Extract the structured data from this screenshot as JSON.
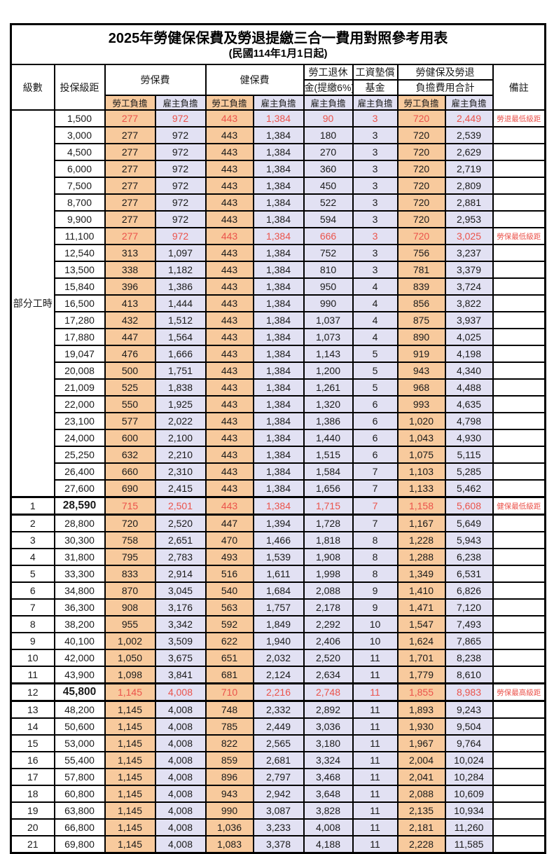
{
  "title": "2025年勞健保保費及勞退提繳三合一費用對照參考用表",
  "subtitle": "(民國114年1月1日起)",
  "colors": {
    "worker_burden_bg": "#F8CA9D",
    "employer_burden_bg": "#E2E1F3",
    "highlight_red": "#EB534B",
    "grid_border": "#000000"
  },
  "header": {
    "level": "級數",
    "bracket": "投保級距",
    "labor_insurance": "勞保費",
    "health_insurance": "健保費",
    "pension_line1": "勞工退休",
    "pension_line2": "金(提繳6%)",
    "wage_fund_line1": "工資墊償",
    "wage_fund_line2": "基金",
    "total_line1": "勞健保及勞退",
    "total_line2": "負擔費用合計",
    "remark": "備註",
    "worker_burden": "勞工負擔",
    "employer_burden": "雇主負擔"
  },
  "part_time_label": "部分工時",
  "rows": [
    {
      "level": "",
      "bracket": "1,500",
      "labor_w": "277",
      "labor_e": "972",
      "health_w": "443",
      "health_e": "1,384",
      "pension": "90",
      "fund": "3",
      "total_w": "720",
      "total_e": "2,449",
      "remark": "勞退最低級距",
      "red": true,
      "bold": false,
      "thick": false
    },
    {
      "level": "",
      "bracket": "3,000",
      "labor_w": "277",
      "labor_e": "972",
      "health_w": "443",
      "health_e": "1,384",
      "pension": "180",
      "fund": "3",
      "total_w": "720",
      "total_e": "2,539",
      "remark": "",
      "red": false,
      "bold": false,
      "thick": false
    },
    {
      "level": "",
      "bracket": "4,500",
      "labor_w": "277",
      "labor_e": "972",
      "health_w": "443",
      "health_e": "1,384",
      "pension": "270",
      "fund": "3",
      "total_w": "720",
      "total_e": "2,629",
      "remark": "",
      "red": false,
      "bold": false,
      "thick": false
    },
    {
      "level": "",
      "bracket": "6,000",
      "labor_w": "277",
      "labor_e": "972",
      "health_w": "443",
      "health_e": "1,384",
      "pension": "360",
      "fund": "3",
      "total_w": "720",
      "total_e": "2,719",
      "remark": "",
      "red": false,
      "bold": false,
      "thick": false
    },
    {
      "level": "",
      "bracket": "7,500",
      "labor_w": "277",
      "labor_e": "972",
      "health_w": "443",
      "health_e": "1,384",
      "pension": "450",
      "fund": "3",
      "total_w": "720",
      "total_e": "2,809",
      "remark": "",
      "red": false,
      "bold": false,
      "thick": false
    },
    {
      "level": "",
      "bracket": "8,700",
      "labor_w": "277",
      "labor_e": "972",
      "health_w": "443",
      "health_e": "1,384",
      "pension": "522",
      "fund": "3",
      "total_w": "720",
      "total_e": "2,881",
      "remark": "",
      "red": false,
      "bold": false,
      "thick": false
    },
    {
      "level": "",
      "bracket": "9,900",
      "labor_w": "277",
      "labor_e": "972",
      "health_w": "443",
      "health_e": "1,384",
      "pension": "594",
      "fund": "3",
      "total_w": "720",
      "total_e": "2,953",
      "remark": "",
      "red": false,
      "bold": false,
      "thick": false
    },
    {
      "level": "",
      "bracket": "11,100",
      "labor_w": "277",
      "labor_e": "972",
      "health_w": "443",
      "health_e": "1,384",
      "pension": "666",
      "fund": "3",
      "total_w": "720",
      "total_e": "3,025",
      "remark": "勞保最低級距",
      "red": true,
      "bold": false,
      "thick": false
    },
    {
      "level": "",
      "bracket": "12,540",
      "labor_w": "313",
      "labor_e": "1,097",
      "health_w": "443",
      "health_e": "1,384",
      "pension": "752",
      "fund": "3",
      "total_w": "756",
      "total_e": "3,237",
      "remark": "",
      "red": false,
      "bold": false,
      "thick": false
    },
    {
      "level": "",
      "bracket": "13,500",
      "labor_w": "338",
      "labor_e": "1,182",
      "health_w": "443",
      "health_e": "1,384",
      "pension": "810",
      "fund": "3",
      "total_w": "781",
      "total_e": "3,379",
      "remark": "",
      "red": false,
      "bold": false,
      "thick": false
    },
    {
      "level": "",
      "bracket": "15,840",
      "labor_w": "396",
      "labor_e": "1,386",
      "health_w": "443",
      "health_e": "1,384",
      "pension": "950",
      "fund": "4",
      "total_w": "839",
      "total_e": "3,724",
      "remark": "",
      "red": false,
      "bold": false,
      "thick": false
    },
    {
      "level": "",
      "bracket": "16,500",
      "labor_w": "413",
      "labor_e": "1,444",
      "health_w": "443",
      "health_e": "1,384",
      "pension": "990",
      "fund": "4",
      "total_w": "856",
      "total_e": "3,822",
      "remark": "",
      "red": false,
      "bold": false,
      "thick": false
    },
    {
      "level": "",
      "bracket": "17,280",
      "labor_w": "432",
      "labor_e": "1,512",
      "health_w": "443",
      "health_e": "1,384",
      "pension": "1,037",
      "fund": "4",
      "total_w": "875",
      "total_e": "3,937",
      "remark": "",
      "red": false,
      "bold": false,
      "thick": false
    },
    {
      "level": "",
      "bracket": "17,880",
      "labor_w": "447",
      "labor_e": "1,564",
      "health_w": "443",
      "health_e": "1,384",
      "pension": "1,073",
      "fund": "4",
      "total_w": "890",
      "total_e": "4,025",
      "remark": "",
      "red": false,
      "bold": false,
      "thick": false
    },
    {
      "level": "",
      "bracket": "19,047",
      "labor_w": "476",
      "labor_e": "1,666",
      "health_w": "443",
      "health_e": "1,384",
      "pension": "1,143",
      "fund": "5",
      "total_w": "919",
      "total_e": "4,198",
      "remark": "",
      "red": false,
      "bold": false,
      "thick": false
    },
    {
      "level": "",
      "bracket": "20,008",
      "labor_w": "500",
      "labor_e": "1,751",
      "health_w": "443",
      "health_e": "1,384",
      "pension": "1,200",
      "fund": "5",
      "total_w": "943",
      "total_e": "4,340",
      "remark": "",
      "red": false,
      "bold": false,
      "thick": false
    },
    {
      "level": "",
      "bracket": "21,009",
      "labor_w": "525",
      "labor_e": "1,838",
      "health_w": "443",
      "health_e": "1,384",
      "pension": "1,261",
      "fund": "5",
      "total_w": "968",
      "total_e": "4,488",
      "remark": "",
      "red": false,
      "bold": false,
      "thick": false
    },
    {
      "level": "",
      "bracket": "22,000",
      "labor_w": "550",
      "labor_e": "1,925",
      "health_w": "443",
      "health_e": "1,384",
      "pension": "1,320",
      "fund": "6",
      "total_w": "993",
      "total_e": "4,635",
      "remark": "",
      "red": false,
      "bold": false,
      "thick": false
    },
    {
      "level": "",
      "bracket": "23,100",
      "labor_w": "577",
      "labor_e": "2,022",
      "health_w": "443",
      "health_e": "1,384",
      "pension": "1,386",
      "fund": "6",
      "total_w": "1,020",
      "total_e": "4,798",
      "remark": "",
      "red": false,
      "bold": false,
      "thick": false
    },
    {
      "level": "",
      "bracket": "24,000",
      "labor_w": "600",
      "labor_e": "2,100",
      "health_w": "443",
      "health_e": "1,384",
      "pension": "1,440",
      "fund": "6",
      "total_w": "1,043",
      "total_e": "4,930",
      "remark": "",
      "red": false,
      "bold": false,
      "thick": false
    },
    {
      "level": "",
      "bracket": "25,250",
      "labor_w": "632",
      "labor_e": "2,210",
      "health_w": "443",
      "health_e": "1,384",
      "pension": "1,515",
      "fund": "6",
      "total_w": "1,075",
      "total_e": "5,115",
      "remark": "",
      "red": false,
      "bold": false,
      "thick": false
    },
    {
      "level": "",
      "bracket": "26,400",
      "labor_w": "660",
      "labor_e": "2,310",
      "health_w": "443",
      "health_e": "1,384",
      "pension": "1,584",
      "fund": "7",
      "total_w": "1,103",
      "total_e": "5,285",
      "remark": "",
      "red": false,
      "bold": false,
      "thick": false
    },
    {
      "level": "",
      "bracket": "27,600",
      "labor_w": "690",
      "labor_e": "2,415",
      "health_w": "443",
      "health_e": "1,384",
      "pension": "1,656",
      "fund": "7",
      "total_w": "1,133",
      "total_e": "5,462",
      "remark": "",
      "red": false,
      "bold": false,
      "thick": false
    },
    {
      "level": "1",
      "bracket": "28,590",
      "labor_w": "715",
      "labor_e": "2,501",
      "health_w": "443",
      "health_e": "1,384",
      "pension": "1,715",
      "fund": "7",
      "total_w": "1,158",
      "total_e": "5,608",
      "remark": "健保最低級距",
      "red": true,
      "bold": true,
      "thick": true
    },
    {
      "level": "2",
      "bracket": "28,800",
      "labor_w": "720",
      "labor_e": "2,520",
      "health_w": "447",
      "health_e": "1,394",
      "pension": "1,728",
      "fund": "7",
      "total_w": "1,167",
      "total_e": "5,649",
      "remark": "",
      "red": false,
      "bold": false,
      "thick": false
    },
    {
      "level": "3",
      "bracket": "30,300",
      "labor_w": "758",
      "labor_e": "2,651",
      "health_w": "470",
      "health_e": "1,466",
      "pension": "1,818",
      "fund": "8",
      "total_w": "1,228",
      "total_e": "5,943",
      "remark": "",
      "red": false,
      "bold": false,
      "thick": false
    },
    {
      "level": "4",
      "bracket": "31,800",
      "labor_w": "795",
      "labor_e": "2,783",
      "health_w": "493",
      "health_e": "1,539",
      "pension": "1,908",
      "fund": "8",
      "total_w": "1,288",
      "total_e": "6,238",
      "remark": "",
      "red": false,
      "bold": false,
      "thick": false
    },
    {
      "level": "5",
      "bracket": "33,300",
      "labor_w": "833",
      "labor_e": "2,914",
      "health_w": "516",
      "health_e": "1,611",
      "pension": "1,998",
      "fund": "8",
      "total_w": "1,349",
      "total_e": "6,531",
      "remark": "",
      "red": false,
      "bold": false,
      "thick": false
    },
    {
      "level": "6",
      "bracket": "34,800",
      "labor_w": "870",
      "labor_e": "3,045",
      "health_w": "540",
      "health_e": "1,684",
      "pension": "2,088",
      "fund": "9",
      "total_w": "1,410",
      "total_e": "6,826",
      "remark": "",
      "red": false,
      "bold": false,
      "thick": false
    },
    {
      "level": "7",
      "bracket": "36,300",
      "labor_w": "908",
      "labor_e": "3,176",
      "health_w": "563",
      "health_e": "1,757",
      "pension": "2,178",
      "fund": "9",
      "total_w": "1,471",
      "total_e": "7,120",
      "remark": "",
      "red": false,
      "bold": false,
      "thick": false
    },
    {
      "level": "8",
      "bracket": "38,200",
      "labor_w": "955",
      "labor_e": "3,342",
      "health_w": "592",
      "health_e": "1,849",
      "pension": "2,292",
      "fund": "10",
      "total_w": "1,547",
      "total_e": "7,493",
      "remark": "",
      "red": false,
      "bold": false,
      "thick": false
    },
    {
      "level": "9",
      "bracket": "40,100",
      "labor_w": "1,002",
      "labor_e": "3,509",
      "health_w": "622",
      "health_e": "1,940",
      "pension": "2,406",
      "fund": "10",
      "total_w": "1,624",
      "total_e": "7,865",
      "remark": "",
      "red": false,
      "bold": false,
      "thick": false
    },
    {
      "level": "10",
      "bracket": "42,000",
      "labor_w": "1,050",
      "labor_e": "3,675",
      "health_w": "651",
      "health_e": "2,032",
      "pension": "2,520",
      "fund": "11",
      "total_w": "1,701",
      "total_e": "8,238",
      "remark": "",
      "red": false,
      "bold": false,
      "thick": false
    },
    {
      "level": "11",
      "bracket": "43,900",
      "labor_w": "1,098",
      "labor_e": "3,841",
      "health_w": "681",
      "health_e": "2,124",
      "pension": "2,634",
      "fund": "11",
      "total_w": "1,779",
      "total_e": "8,610",
      "remark": "",
      "red": false,
      "bold": false,
      "thick": false
    },
    {
      "level": "12",
      "bracket": "45,800",
      "labor_w": "1,145",
      "labor_e": "4,008",
      "health_w": "710",
      "health_e": "2,216",
      "pension": "2,748",
      "fund": "11",
      "total_w": "1,855",
      "total_e": "8,983",
      "remark": "勞保最高級距",
      "red": true,
      "bold": true,
      "thick": true
    },
    {
      "level": "13",
      "bracket": "48,200",
      "labor_w": "1,145",
      "labor_e": "4,008",
      "health_w": "748",
      "health_e": "2,332",
      "pension": "2,892",
      "fund": "11",
      "total_w": "1,893",
      "total_e": "9,243",
      "remark": "",
      "red": false,
      "bold": false,
      "thick": false
    },
    {
      "level": "14",
      "bracket": "50,600",
      "labor_w": "1,145",
      "labor_e": "4,008",
      "health_w": "785",
      "health_e": "2,449",
      "pension": "3,036",
      "fund": "11",
      "total_w": "1,930",
      "total_e": "9,504",
      "remark": "",
      "red": false,
      "bold": false,
      "thick": false
    },
    {
      "level": "15",
      "bracket": "53,000",
      "labor_w": "1,145",
      "labor_e": "4,008",
      "health_w": "822",
      "health_e": "2,565",
      "pension": "3,180",
      "fund": "11",
      "total_w": "1,967",
      "total_e": "9,764",
      "remark": "",
      "red": false,
      "bold": false,
      "thick": false
    },
    {
      "level": "16",
      "bracket": "55,400",
      "labor_w": "1,145",
      "labor_e": "4,008",
      "health_w": "859",
      "health_e": "2,681",
      "pension": "3,324",
      "fund": "11",
      "total_w": "2,004",
      "total_e": "10,024",
      "remark": "",
      "red": false,
      "bold": false,
      "thick": false
    },
    {
      "level": "17",
      "bracket": "57,800",
      "labor_w": "1,145",
      "labor_e": "4,008",
      "health_w": "896",
      "health_e": "2,797",
      "pension": "3,468",
      "fund": "11",
      "total_w": "2,041",
      "total_e": "10,284",
      "remark": "",
      "red": false,
      "bold": false,
      "thick": false
    },
    {
      "level": "18",
      "bracket": "60,800",
      "labor_w": "1,145",
      "labor_e": "4,008",
      "health_w": "943",
      "health_e": "2,942",
      "pension": "3,648",
      "fund": "11",
      "total_w": "2,088",
      "total_e": "10,609",
      "remark": "",
      "red": false,
      "bold": false,
      "thick": false
    },
    {
      "level": "19",
      "bracket": "63,800",
      "labor_w": "1,145",
      "labor_e": "4,008",
      "health_w": "990",
      "health_e": "3,087",
      "pension": "3,828",
      "fund": "11",
      "total_w": "2,135",
      "total_e": "10,934",
      "remark": "",
      "red": false,
      "bold": false,
      "thick": false
    },
    {
      "level": "20",
      "bracket": "66,800",
      "labor_w": "1,145",
      "labor_e": "4,008",
      "health_w": "1,036",
      "health_e": "3,233",
      "pension": "4,008",
      "fund": "11",
      "total_w": "2,181",
      "total_e": "11,260",
      "remark": "",
      "red": false,
      "bold": false,
      "thick": false
    },
    {
      "level": "21",
      "bracket": "69,800",
      "labor_w": "1,145",
      "labor_e": "4,008",
      "health_w": "1,083",
      "health_e": "3,378",
      "pension": "4,188",
      "fund": "11",
      "total_w": "2,228",
      "total_e": "11,585",
      "remark": "",
      "red": false,
      "bold": false,
      "thick": false
    }
  ]
}
